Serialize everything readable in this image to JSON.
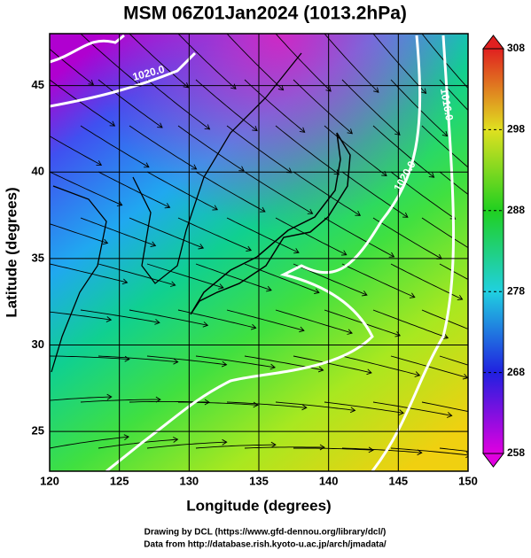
{
  "title": "MSM 06Z01Jan2024 (1013.2hPa)",
  "map": {
    "xlabel": "Longitude (degrees)",
    "ylabel": "Latitude  (degrees)",
    "xlim": [
      120,
      150
    ],
    "ylim": [
      22.7,
      48.0
    ],
    "xticks": [
      120,
      125,
      130,
      135,
      140,
      145,
      150
    ],
    "yticks": [
      25,
      30,
      35,
      40,
      45
    ],
    "contour_labels": [
      "1020.0",
      "1016.0",
      "1020.0"
    ]
  },
  "colorbar": {
    "lim": [
      258,
      308
    ],
    "ticks": [
      258,
      268,
      278,
      288,
      298,
      308
    ]
  },
  "footer": [
    "Drawing by DCL (https://www.gfd-dennou.org/library/dcl/)",
    "Data from http://database.rish.kyoto-u.ac.jp/arch/jmadata/"
  ]
}
